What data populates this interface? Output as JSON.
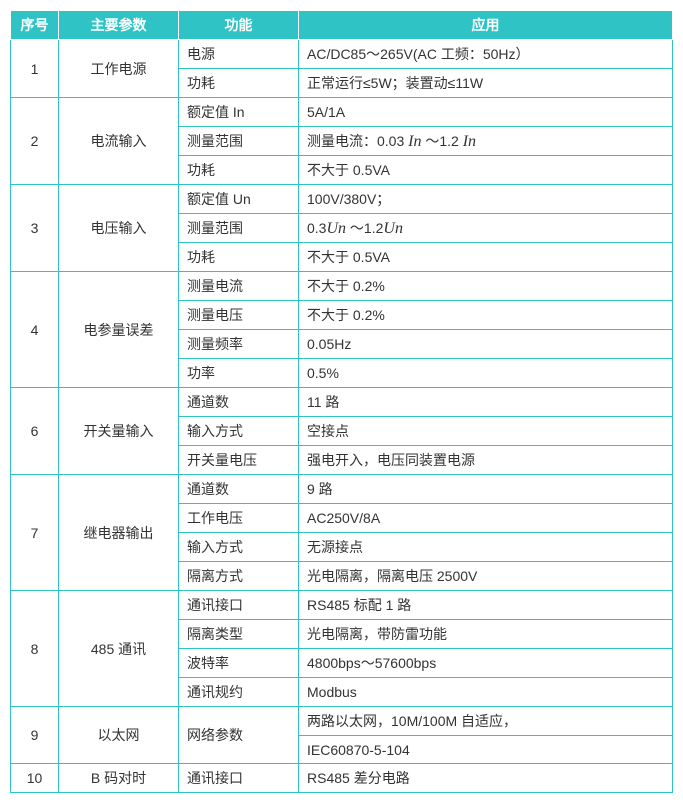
{
  "header": {
    "col1": "序号",
    "col2": "主要参数",
    "col3": "功能",
    "col4": "应用"
  },
  "sections": [
    {
      "idx": "1",
      "param": "工作电源",
      "rows": [
        {
          "func": "电源",
          "app": "AC/DC85～265V(AC 工频：50Hz）"
        },
        {
          "func": "功耗",
          "app": "正常运行≤5W；装置动≤11W"
        }
      ]
    },
    {
      "idx": "2",
      "param": "电流输入",
      "rows": [
        {
          "func": "额定值 In",
          "app": "5A/1A"
        },
        {
          "func": "测量范围",
          "app_special": "current_range"
        },
        {
          "func": "功耗",
          "app": "不大于 0.5VA"
        }
      ]
    },
    {
      "idx": "3",
      "param": "电压输入",
      "rows": [
        {
          "func": "额定值 Un",
          "app": "100V/380V；"
        },
        {
          "func": "测量范围",
          "app_special": "voltage_range"
        },
        {
          "func": "功耗",
          "app": "不大于 0.5VA"
        }
      ]
    },
    {
      "idx": "4",
      "param": "电参量误差",
      "rows": [
        {
          "func": "测量电流",
          "app": "不大于 0.2%"
        },
        {
          "func": "测量电压",
          "app": "不大于 0.2%"
        },
        {
          "func": "测量频率",
          "app": "0.05Hz"
        },
        {
          "func": "功率",
          "app": "0.5%"
        }
      ]
    },
    {
      "idx": "6",
      "param": "开关量输入",
      "rows": [
        {
          "func": "通道数",
          "app": "11 路"
        },
        {
          "func": "输入方式",
          "app": "空接点"
        },
        {
          "func": "开关量电压",
          "app": "强电开入，电压同装置电源"
        }
      ]
    },
    {
      "idx": "7",
      "param": "继电器输出",
      "rows": [
        {
          "func": "通道数",
          "app": "9 路"
        },
        {
          "func": "工作电压",
          "app": "AC250V/8A"
        },
        {
          "func": "输入方式",
          "app": "无源接点"
        },
        {
          "func": "隔离方式",
          "app": "光电隔离，隔离电压 2500V"
        }
      ]
    },
    {
      "idx": "8",
      "param": "485 通讯",
      "rows": [
        {
          "func": "通讯接口",
          "app": "RS485 标配 1 路"
        },
        {
          "func": "隔离类型",
          "app": "光电隔离，带防雷功能"
        },
        {
          "func": "波特率",
          "app": "4800bps～57600bps"
        },
        {
          "func": "通讯规约",
          "app": "Modbus"
        }
      ]
    },
    {
      "idx": "9",
      "param": "以太网",
      "rowspan_sub": 2,
      "rows": [
        {
          "func": "网络参数",
          "app": "两路以太网，10M/100M 自适应，",
          "subspan": 2
        },
        {
          "app": "IEC60870-5-104",
          "continued": true
        }
      ]
    },
    {
      "idx": "10",
      "param": "B 码对时",
      "rows": [
        {
          "func": "通讯接口",
          "app": "RS485 差分电路"
        }
      ]
    }
  ],
  "specials": {
    "current_range": {
      "prefix": "测量电流：0.03 ",
      "var1": "In",
      "mid": " ～1.2 ",
      "var2": "In"
    },
    "voltage_range": {
      "prefix": "0.3",
      "var1": "Un",
      "mid": " ～1.2",
      "var2": "Un"
    }
  },
  "colors": {
    "header_bg": "#2fc3c5",
    "header_text": "#ffffff",
    "border": "#2fc3c5",
    "text": "#333333"
  }
}
